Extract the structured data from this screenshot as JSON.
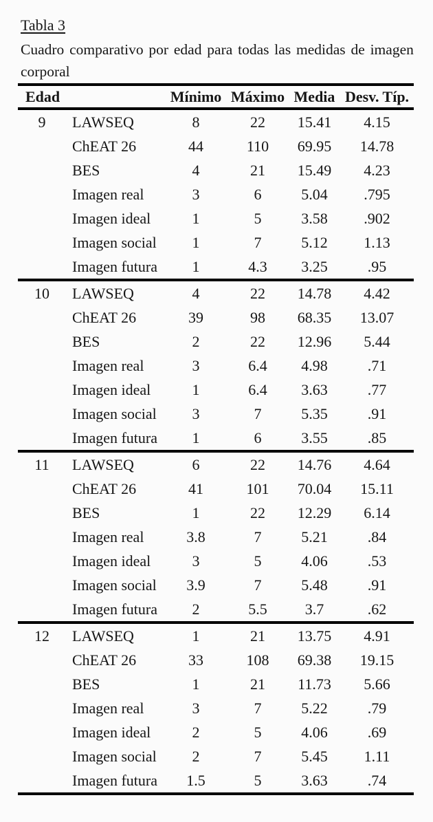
{
  "page": {
    "background": "#fbfbfb",
    "text_color": "#161616",
    "rule_color": "#000000"
  },
  "title": "Tabla 3",
  "caption": {
    "line1": "Cuadro comparativo por edad para todas las medidas de imagen",
    "line2": "corporal"
  },
  "table": {
    "headers": {
      "edad": "Edad",
      "measure": "",
      "minimo": "Mínimo",
      "maximo": "Máximo",
      "media": "Media",
      "desv": "Desv. Típ."
    },
    "groups": [
      {
        "edad": "9",
        "rows": [
          {
            "measure": "LAWSEQ",
            "min": "8",
            "max": "22",
            "media": "15.41",
            "desv": "4.15"
          },
          {
            "measure": "ChEAT 26",
            "min": "44",
            "max": "110",
            "media": "69.95",
            "desv": "14.78"
          },
          {
            "measure": "BES",
            "min": "4",
            "max": "21",
            "media": "15.49",
            "desv": "4.23"
          },
          {
            "measure": "Imagen real",
            "min": "3",
            "max": "6",
            "media": "5.04",
            "desv": ".795"
          },
          {
            "measure": "Imagen ideal",
            "min": "1",
            "max": "5",
            "media": "3.58",
            "desv": ".902"
          },
          {
            "measure": "Imagen social",
            "min": "1",
            "max": "7",
            "media": "5.12",
            "desv": "1.13"
          },
          {
            "measure": "Imagen futura",
            "min": "1",
            "max": "4.3",
            "media": "3.25",
            "desv": ".95"
          }
        ]
      },
      {
        "edad": "10",
        "rows": [
          {
            "measure": "LAWSEQ",
            "min": "4",
            "max": "22",
            "media": "14.78",
            "desv": "4.42"
          },
          {
            "measure": "ChEAT 26",
            "min": "39",
            "max": "98",
            "media": "68.35",
            "desv": "13.07"
          },
          {
            "measure": "BES",
            "min": "2",
            "max": "22",
            "media": "12.96",
            "desv": "5.44"
          },
          {
            "measure": "Imagen real",
            "min": "3",
            "max": "6.4",
            "media": "4.98",
            "desv": ".71"
          },
          {
            "measure": "Imagen ideal",
            "min": "1",
            "max": "6.4",
            "media": "3.63",
            "desv": ".77"
          },
          {
            "measure": "Imagen social",
            "min": "3",
            "max": "7",
            "media": "5.35",
            "desv": ".91"
          },
          {
            "measure": "Imagen futura",
            "min": "1",
            "max": "6",
            "media": "3.55",
            "desv": ".85"
          }
        ]
      },
      {
        "edad": "11",
        "rows": [
          {
            "measure": "LAWSEQ",
            "min": "6",
            "max": "22",
            "media": "14.76",
            "desv": "4.64"
          },
          {
            "measure": "ChEAT 26",
            "min": "41",
            "max": "101",
            "media": "70.04",
            "desv": "15.11"
          },
          {
            "measure": "BES",
            "min": "1",
            "max": "22",
            "media": "12.29",
            "desv": "6.14"
          },
          {
            "measure": "Imagen real",
            "min": "3.8",
            "max": "7",
            "media": "5.21",
            "desv": ".84"
          },
          {
            "measure": "Imagen ideal",
            "min": "3",
            "max": "5",
            "media": "4.06",
            "desv": ".53"
          },
          {
            "measure": "Imagen social",
            "min": "3.9",
            "max": "7",
            "media": "5.48",
            "desv": ".91"
          },
          {
            "measure": "Imagen futura",
            "min": "2",
            "max": "5.5",
            "media": "3.7",
            "desv": ".62"
          }
        ]
      },
      {
        "edad": "12",
        "rows": [
          {
            "measure": "LAWSEQ",
            "min": "1",
            "max": "21",
            "media": "13.75",
            "desv": "4.91"
          },
          {
            "measure": "ChEAT 26",
            "min": "33",
            "max": "108",
            "media": "69.38",
            "desv": "19.15"
          },
          {
            "measure": "BES",
            "min": "1",
            "max": "21",
            "media": "11.73",
            "desv": "5.66"
          },
          {
            "measure": "Imagen real",
            "min": "3",
            "max": "7",
            "media": "5.22",
            "desv": ".79"
          },
          {
            "measure": "Imagen ideal",
            "min": "2",
            "max": "5",
            "media": "4.06",
            "desv": ".69"
          },
          {
            "measure": "Imagen social",
            "min": "2",
            "max": "7",
            "media": "5.45",
            "desv": "1.11"
          },
          {
            "measure": "Imagen futura",
            "min": "1.5",
            "max": "5",
            "media": "3.63",
            "desv": ".74"
          }
        ]
      }
    ]
  }
}
